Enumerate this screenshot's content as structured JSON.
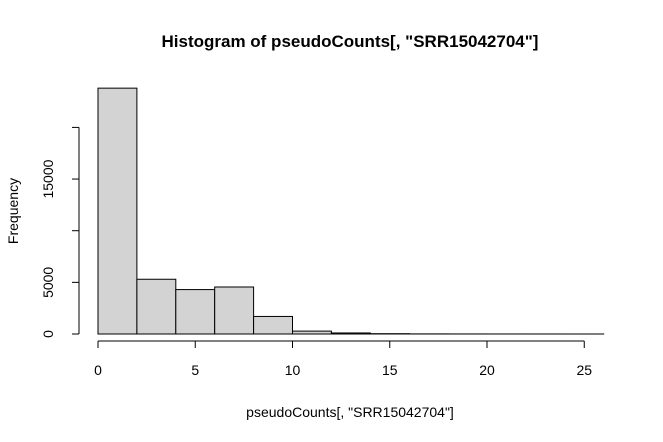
{
  "chart_data": {
    "type": "bar",
    "title": "Histogram of pseudoCounts[, \"SRR15042704\"]",
    "xlabel": "pseudoCounts[, \"SRR15042704\"]",
    "ylabel": "Frequency",
    "bin_edges": [
      0,
      2,
      4,
      6,
      8,
      10,
      12,
      14,
      16,
      18,
      20,
      22,
      24,
      26
    ],
    "counts": [
      23800,
      5300,
      4300,
      4550,
      1700,
      280,
      100,
      30,
      10,
      5,
      3,
      2,
      1
    ],
    "xlim": [
      0,
      26
    ],
    "ylim": [
      0,
      25000
    ],
    "xticks": [
      0,
      5,
      10,
      15,
      20,
      25
    ],
    "xtick_labels": [
      "0",
      "5",
      "10",
      "15",
      "20",
      "25"
    ],
    "yticks": [
      0,
      5000,
      10000,
      15000,
      20000
    ],
    "ytick_labels": [
      "0",
      "5000",
      "",
      "15000",
      ""
    ],
    "bar_fill": "#d3d3d3",
    "bar_stroke": "#000000",
    "grid": false,
    "legend": "none"
  }
}
